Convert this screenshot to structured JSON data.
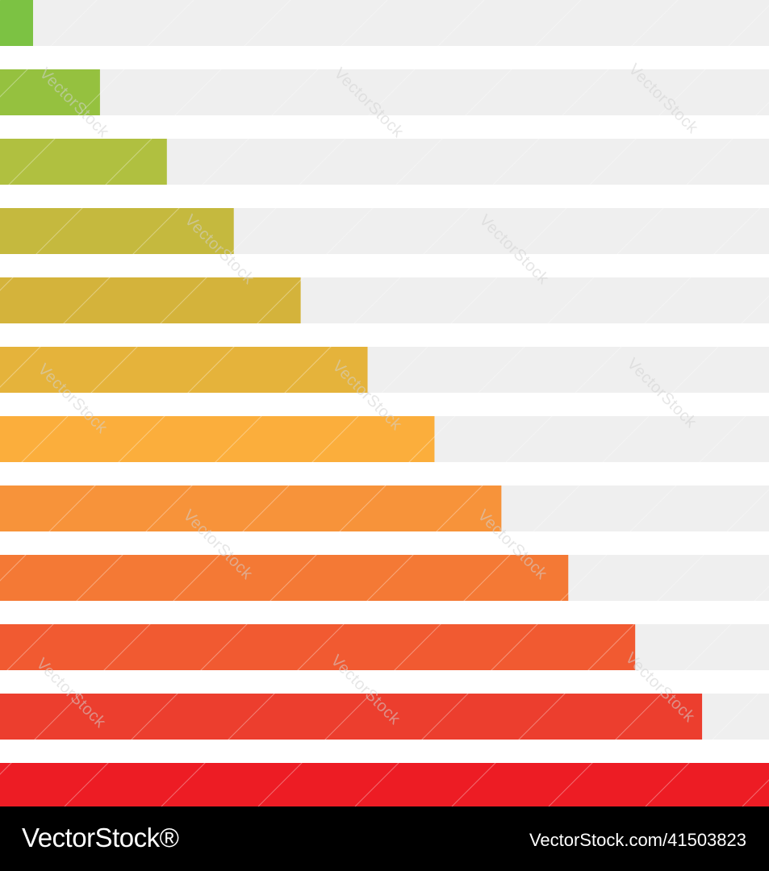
{
  "chart_data": {
    "type": "bar",
    "orientation": "horizontal",
    "max": 100,
    "values": [
      4.3,
      13,
      21.7,
      30.4,
      39.1,
      47.8,
      56.5,
      65.2,
      73.9,
      82.6,
      91.3,
      100
    ],
    "colors": [
      "#7cc243",
      "#95c13f",
      "#b0c040",
      "#c5b93e",
      "#d4b33b",
      "#e5b33b",
      "#fbae3c",
      "#f7933a",
      "#f47935",
      "#f15a31",
      "#ec3e2e",
      "#ed1c24"
    ],
    "track_color": "#efefef",
    "grid": false,
    "legend": "none"
  },
  "watermark": "VectorStock",
  "footer": {
    "brand": "VectorStock®",
    "url": "VectorStock.com/41503823"
  }
}
